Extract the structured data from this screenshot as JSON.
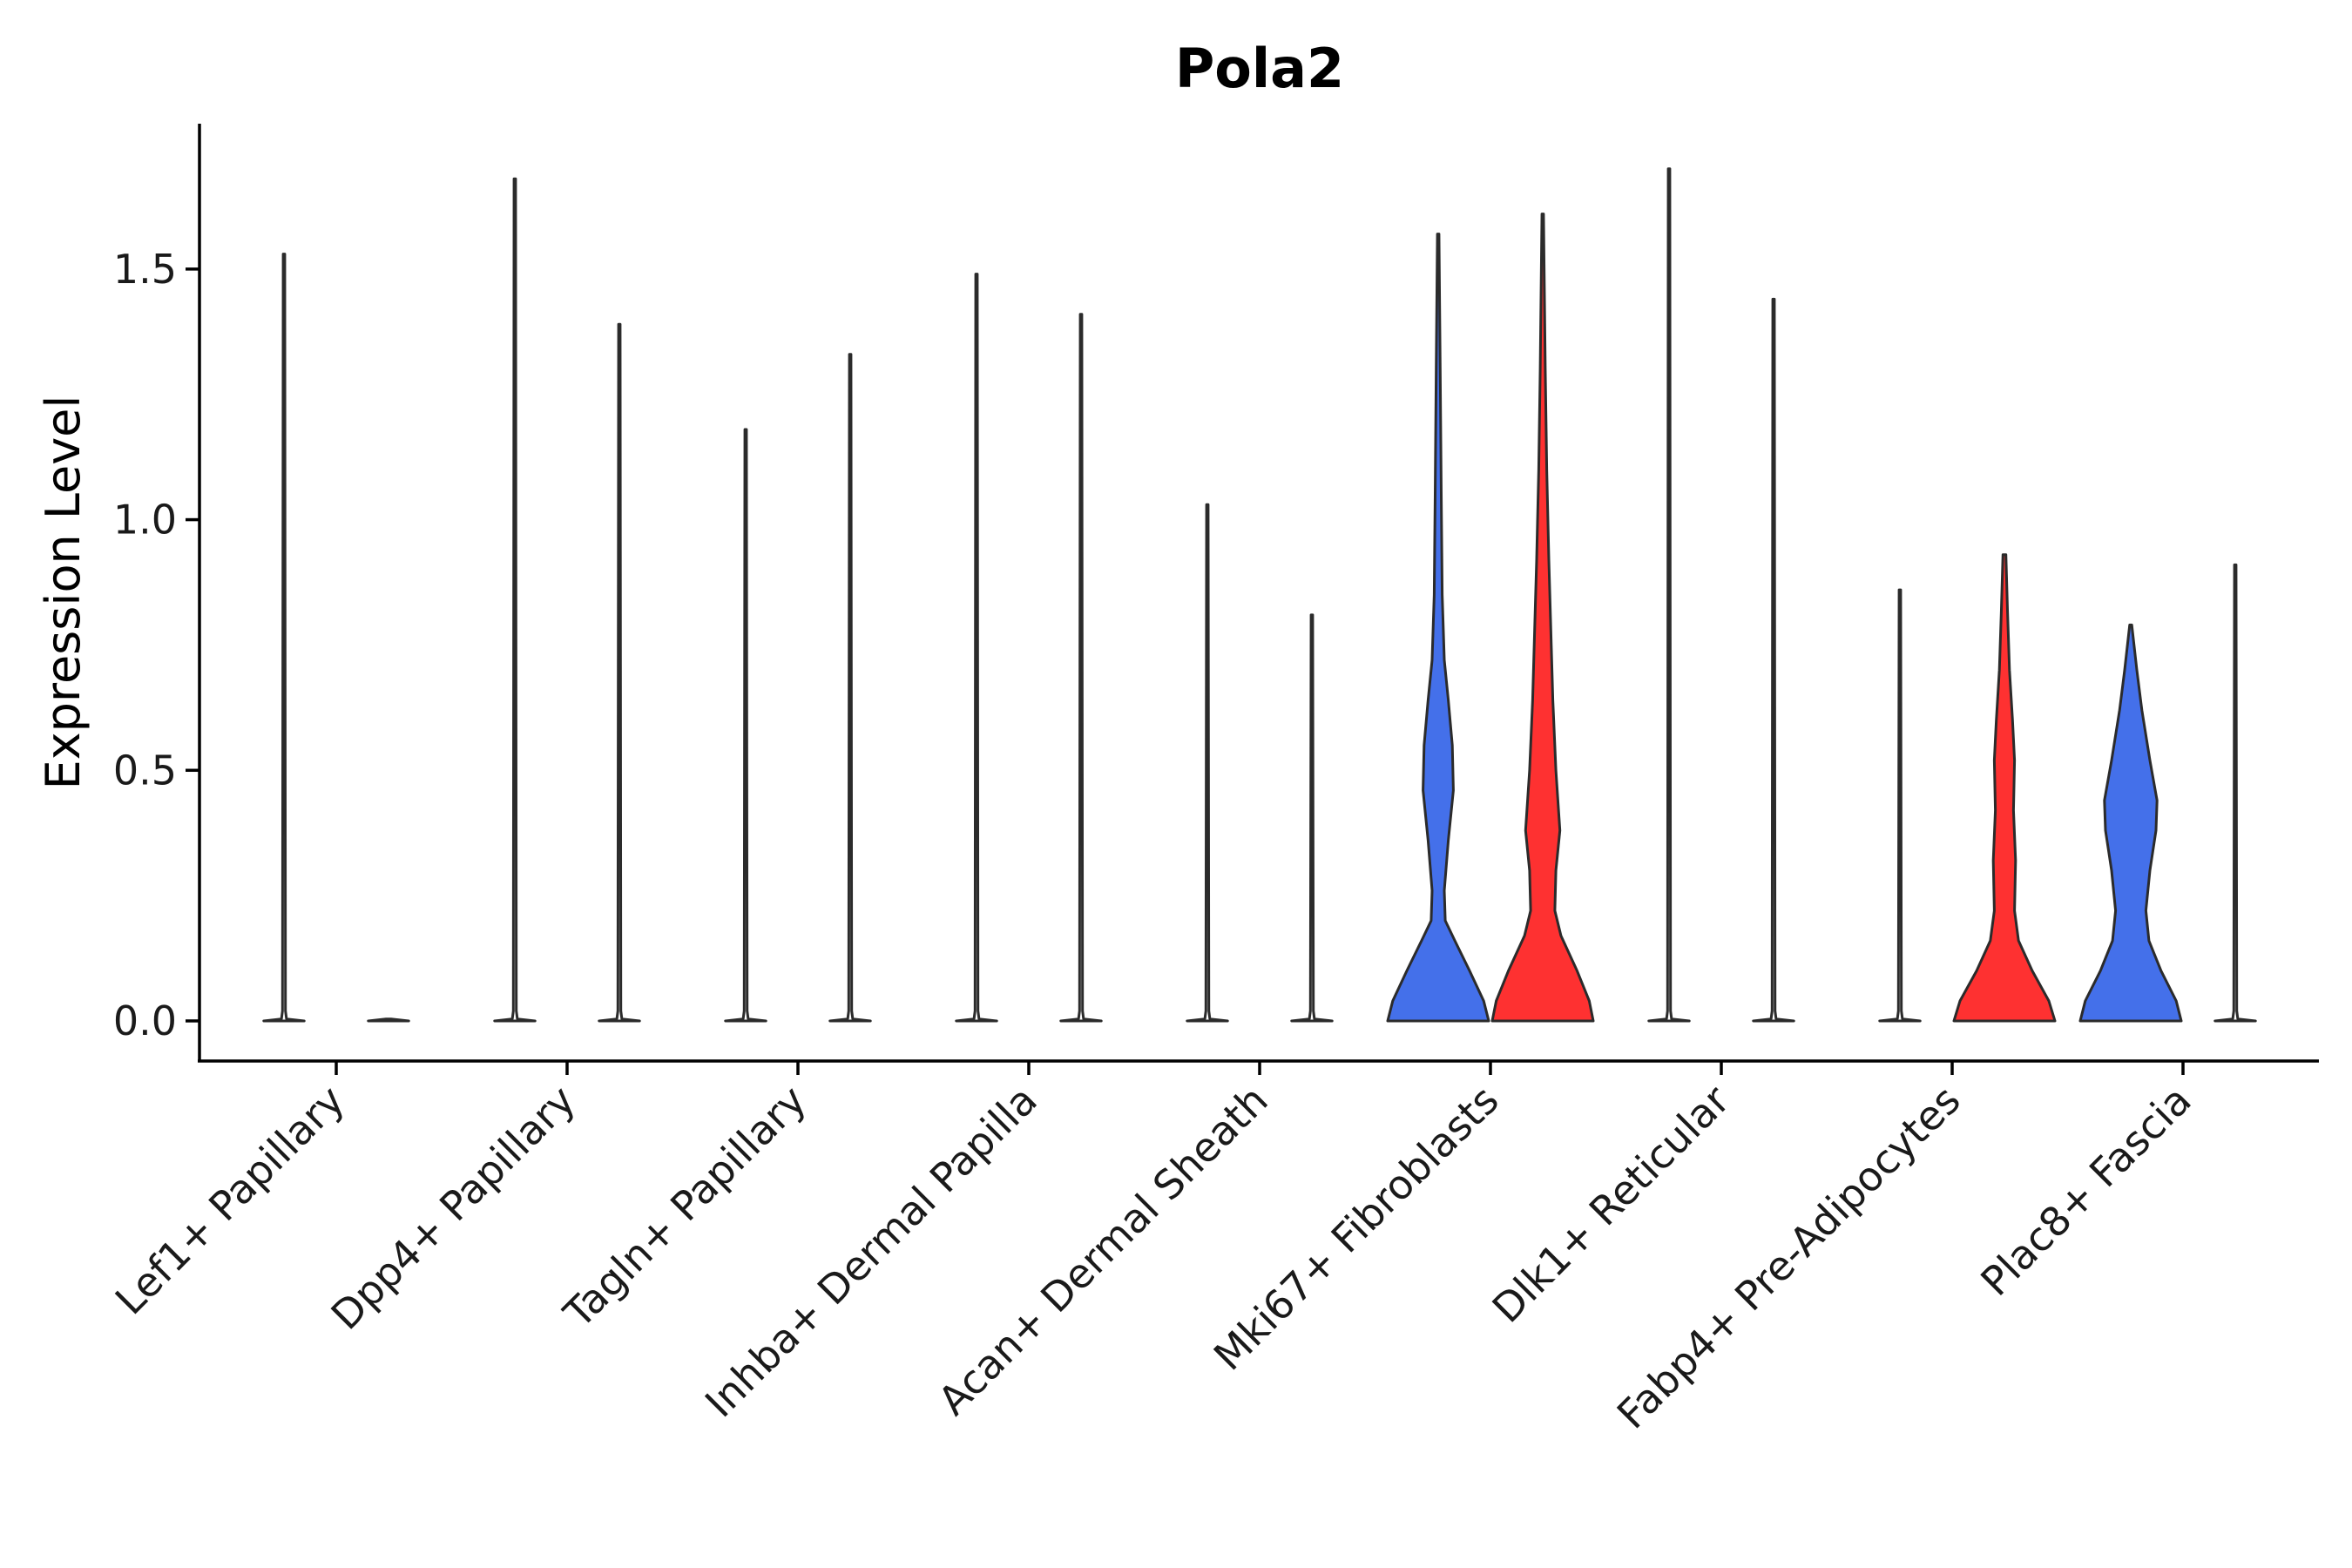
{
  "chart_data": {
    "type": "violin",
    "title": "Pola2",
    "xlabel": "",
    "ylabel": "Expression Level",
    "ylim": [
      -0.08,
      1.79
    ],
    "yticks": [
      0.0,
      0.5,
      1.0,
      1.5
    ],
    "ytick_labels": [
      "0.0",
      "0.5",
      "1.0",
      "1.5"
    ],
    "grid": false,
    "legend": "none",
    "colors": {
      "low": "#4470EA",
      "high": "#FE3131",
      "default": "#ffffff",
      "outline": "#2b2b2b"
    },
    "groups": [
      {
        "label": "Lef1+ Papillary",
        "split": [
          {
            "max": 1.53,
            "fill": "default",
            "profile": "spike"
          },
          {
            "max": 0.0,
            "fill": "default",
            "profile": "flat"
          }
        ]
      },
      {
        "label": "Dpp4+ Papillary",
        "split": [
          {
            "max": 1.68,
            "fill": "default",
            "profile": "spike"
          },
          {
            "max": 1.39,
            "fill": "default",
            "profile": "spike"
          }
        ]
      },
      {
        "label": "Tagln+ Papillary",
        "split": [
          {
            "max": 1.18,
            "fill": "default",
            "profile": "spike"
          },
          {
            "max": 1.33,
            "fill": "default",
            "profile": "spike"
          }
        ]
      },
      {
        "label": "Inhba+ Dermal Papilla",
        "split": [
          {
            "max": 1.49,
            "fill": "default",
            "profile": "spike"
          },
          {
            "max": 1.41,
            "fill": "default",
            "profile": "spike"
          }
        ]
      },
      {
        "label": "Acan+ Dermal Sheath",
        "split": [
          {
            "max": 1.03,
            "fill": "default",
            "profile": "spike"
          },
          {
            "max": 0.81,
            "fill": "default",
            "profile": "spike"
          }
        ]
      },
      {
        "label": "Mki67+ Fibroblasts",
        "split": [
          {
            "max": 1.57,
            "fill": "low",
            "profile": "mki_left"
          },
          {
            "max": 1.61,
            "fill": "high",
            "profile": "mki_right"
          }
        ]
      },
      {
        "label": "Dlk1+ Reticular",
        "split": [
          {
            "max": 1.7,
            "fill": "default",
            "profile": "spike"
          },
          {
            "max": 1.44,
            "fill": "default",
            "profile": "spike"
          }
        ]
      },
      {
        "label": "Fabp4+ Pre-Adipocytes",
        "split": [
          {
            "max": 0.86,
            "fill": "default",
            "profile": "spike"
          },
          {
            "max": 0.93,
            "fill": "high",
            "profile": "fabp_right"
          }
        ]
      },
      {
        "label": "Plac8+ Fascia",
        "split": [
          {
            "max": 0.79,
            "fill": "low",
            "profile": "plac_left"
          },
          {
            "max": 0.91,
            "fill": "default",
            "profile": "spike"
          }
        ]
      }
    ]
  }
}
